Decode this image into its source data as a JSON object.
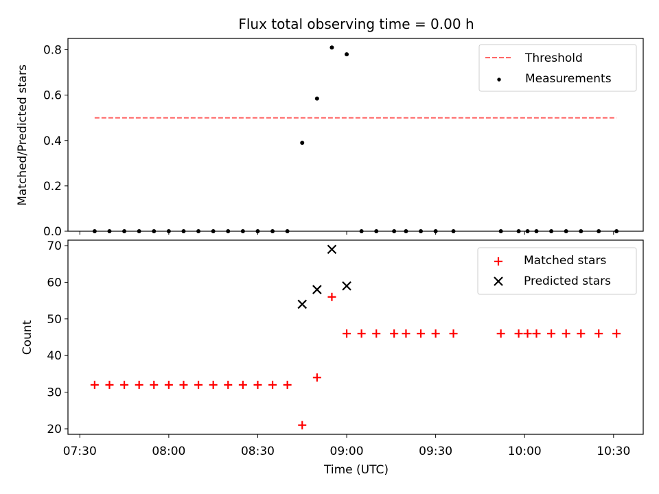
{
  "chart_data": [
    {
      "type": "scatter",
      "title": "Flux total observing time = 0.00 h",
      "xlabel": "",
      "ylabel": "Matched/Predicted stars",
      "ylim": [
        0,
        0.85
      ],
      "yticks": [
        0.0,
        0.2,
        0.4,
        0.6,
        0.8
      ],
      "ytick_labels": [
        "0.0",
        "0.2",
        "0.4",
        "0.6",
        "0.8"
      ],
      "xlim": [
        "07:26",
        "10:40"
      ],
      "legend_position": "top-right",
      "series": [
        {
          "name": "Threshold",
          "kind": "line",
          "style": "dashed",
          "color": "#ff6666",
          "x": [
            "07:35",
            "10:31"
          ],
          "y": [
            0.5,
            0.5
          ]
        },
        {
          "name": "Measurements",
          "kind": "scatter",
          "marker": "dot",
          "color": "#000000",
          "x": [
            "07:35",
            "07:40",
            "07:45",
            "07:50",
            "07:55",
            "08:00",
            "08:05",
            "08:10",
            "08:15",
            "08:20",
            "08:25",
            "08:30",
            "08:35",
            "08:40",
            "08:45",
            "08:50",
            "08:55",
            "09:00",
            "09:05",
            "09:10",
            "09:16",
            "09:20",
            "09:25",
            "09:30",
            "09:36",
            "09:52",
            "09:58",
            "10:01",
            "10:04",
            "10:09",
            "10:14",
            "10:19",
            "10:25",
            "10:31"
          ],
          "y": [
            0,
            0,
            0,
            0,
            0,
            0,
            0,
            0,
            0,
            0,
            0,
            0,
            0,
            0,
            0.39,
            0.585,
            0.81,
            0.78,
            0,
            0,
            0,
            0,
            0,
            0,
            0,
            0,
            0,
            0,
            0,
            0,
            0,
            0,
            0,
            0
          ]
        }
      ]
    },
    {
      "type": "scatter",
      "title": "",
      "xlabel": "Time (UTC)",
      "ylabel": "Count",
      "ylim": [
        18.5,
        71.5
      ],
      "yticks": [
        20,
        30,
        40,
        50,
        60,
        70
      ],
      "ytick_labels": [
        "20",
        "30",
        "40",
        "50",
        "60",
        "70"
      ],
      "xlim": [
        "07:26",
        "10:40"
      ],
      "xticks": [
        "07:30",
        "08:00",
        "08:30",
        "09:00",
        "09:30",
        "10:00",
        "10:30"
      ],
      "xtick_labels": [
        "07:30",
        "08:00",
        "08:30",
        "09:00",
        "09:30",
        "10:00",
        "10:30"
      ],
      "legend_position": "top-right",
      "series": [
        {
          "name": "Matched stars",
          "kind": "scatter",
          "marker": "plus",
          "color": "#ff0000",
          "x": [
            "07:35",
            "07:40",
            "07:45",
            "07:50",
            "07:55",
            "08:00",
            "08:05",
            "08:10",
            "08:15",
            "08:20",
            "08:25",
            "08:30",
            "08:35",
            "08:40",
            "08:45",
            "08:50",
            "08:55",
            "09:00",
            "09:05",
            "09:10",
            "09:16",
            "09:20",
            "09:25",
            "09:30",
            "09:36",
            "09:52",
            "09:58",
            "10:01",
            "10:04",
            "10:09",
            "10:14",
            "10:19",
            "10:25",
            "10:31"
          ],
          "y": [
            32,
            32,
            32,
            32,
            32,
            32,
            32,
            32,
            32,
            32,
            32,
            32,
            32,
            32,
            21,
            34,
            56,
            46,
            46,
            46,
            46,
            46,
            46,
            46,
            46,
            46,
            46,
            46,
            46,
            46,
            46,
            46,
            46,
            46
          ]
        },
        {
          "name": "Predicted stars",
          "kind": "scatter",
          "marker": "x",
          "color": "#000000",
          "x": [
            "08:45",
            "08:50",
            "08:55",
            "09:00"
          ],
          "y": [
            54,
            58,
            69,
            59
          ]
        }
      ]
    }
  ]
}
